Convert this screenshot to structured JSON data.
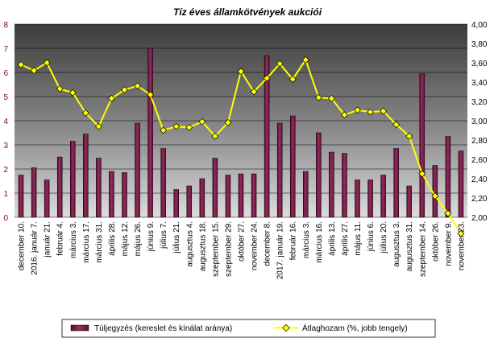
{
  "chart_data": {
    "type": "bar+line",
    "title": "Tíz éves államkötvények aukciói",
    "categories": [
      "december 10.",
      "2016. január 7.",
      "január 21.",
      "február 4.",
      "március 3.",
      "március 17.",
      "március 31.",
      "április 28.",
      "május 12.",
      "május 26.",
      "június 9.",
      "július 7.",
      "július 21.",
      "augusztus 4.",
      "augusztus 18.",
      "szeptember 15.",
      "szeptember 29.",
      "október 27.",
      "november 24.",
      "december 8.",
      "2017. január 19.",
      "február 16.",
      "március 3.",
      "március 16.",
      "április 13.",
      "április 27.",
      "május 11.",
      "június 6.",
      "július 20.",
      "augusztus 3.",
      "augusztus 31.",
      "szeptember 14.",
      "október 26.",
      "november 9.",
      "november 23."
    ],
    "series": [
      {
        "name": "Túljegyzés (kereslet és kínálat aránya)",
        "axis": "left",
        "kind": "bar",
        "color": "#7a1a48",
        "values": [
          1.75,
          2.05,
          1.55,
          2.5,
          3.15,
          3.45,
          2.45,
          1.9,
          1.85,
          3.9,
          7.0,
          2.85,
          1.15,
          1.3,
          1.6,
          2.45,
          1.75,
          1.8,
          1.8,
          6.7,
          3.9,
          4.2,
          1.9,
          3.5,
          2.7,
          2.65,
          1.55,
          1.55,
          1.75,
          2.85,
          1.3,
          5.95,
          2.15,
          3.35,
          2.75
        ]
      },
      {
        "name": "Átlaghozam (%, jobb tengely)",
        "axis": "right",
        "kind": "line",
        "color": "#ffff00",
        "values": [
          3.58,
          3.52,
          3.6,
          3.33,
          3.29,
          3.08,
          2.94,
          3.23,
          3.32,
          3.36,
          3.27,
          2.9,
          2.94,
          2.93,
          2.99,
          2.84,
          2.98,
          3.51,
          3.3,
          3.44,
          3.59,
          3.43,
          3.63,
          3.24,
          3.23,
          3.06,
          3.11,
          3.09,
          3.1,
          2.96,
          2.84,
          2.45,
          2.22,
          2.04,
          1.83
        ]
      }
    ],
    "left_axis": {
      "min": 0,
      "max": 8,
      "ticks": [
        "0",
        "1",
        "2",
        "3",
        "4",
        "5",
        "6",
        "7",
        "8"
      ]
    },
    "right_axis": {
      "min": 2.0,
      "max": 4.0,
      "ticks": [
        "2,00",
        "2,20",
        "2,40",
        "2,60",
        "2,80",
        "3,00",
        "3,20",
        "3,40",
        "3,60",
        "3,80",
        "4,00"
      ]
    },
    "grid": true,
    "legend_position": "bottom"
  },
  "colors": {
    "plot_top": "#3f3f3f",
    "plot_bottom": "#d8d8d8",
    "bar": "#7a1a48",
    "line": "#ffff00",
    "left_axis_text": "#8b0040"
  }
}
